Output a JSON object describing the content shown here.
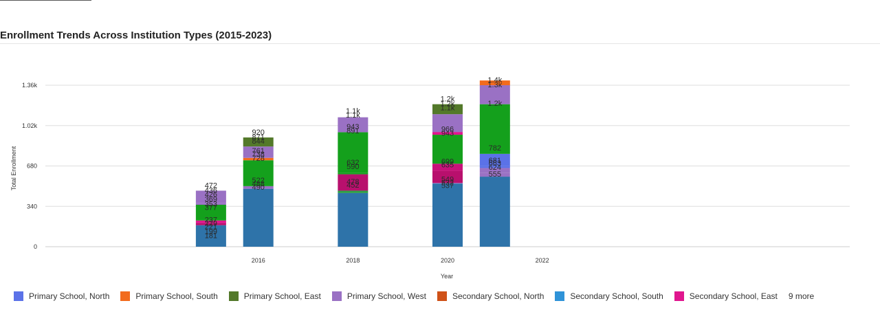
{
  "chart_data": {
    "type": "bar",
    "title": "Enrollment Trends Across Institution Types (2015-2023)",
    "xlabel": "Year",
    "ylabel": "Total Enrollment",
    "x_ticks": [
      "2016",
      "2018",
      "2020",
      "2022"
    ],
    "y_ticks": [
      "0",
      "340",
      "680",
      "1.02k",
      "1.36k"
    ],
    "ylim": [
      0,
      1360
    ],
    "xlim": [
      2011.5,
      2028.5
    ],
    "grid": true,
    "legend_position": "bottom",
    "legend_more_label": "9 more",
    "x": [
      2015,
      2016,
      2018,
      2020,
      2021
    ],
    "series": [
      {
        "name": "Primary School, North",
        "color": "#5b72e8",
        "values": [
          null,
          null,
          null,
          null,
          782
        ]
      },
      {
        "name": "Primary School, South",
        "color": "#f26b1d",
        "values": [
          null,
          null,
          null,
          null,
          null
        ]
      },
      {
        "name": "Primary School, East",
        "color": "#53792a",
        "values": [
          null,
          null,
          null,
          null,
          null
        ]
      },
      {
        "name": "Primary School, West",
        "color": "#9a71c4",
        "values": [
          null,
          null,
          null,
          null,
          null
        ]
      },
      {
        "name": "Secondary School, North",
        "color": "#cf5118",
        "values": [
          null,
          null,
          null,
          null,
          null
        ]
      },
      {
        "name": "Secondary School, South",
        "color": "#2f93d8",
        "values": [
          null,
          null,
          null,
          null,
          null
        ]
      },
      {
        "name": "Secondary School, East",
        "color": "#e0168e",
        "values": [
          null,
          null,
          null,
          null,
          null
        ]
      }
    ],
    "data_labels": [
      {
        "x": 2015,
        "dy": 0,
        "text": "472"
      },
      {
        "x": 2015,
        "dy": 7,
        "text": "436"
      },
      {
        "x": 2015,
        "dy": 13,
        "text": "426"
      },
      {
        "x": 2015,
        "dy": 20,
        "text": "369"
      },
      {
        "x": 2015,
        "dy": 27,
        "text": "353"
      },
      {
        "x": 2015,
        "dy": 32,
        "text": "377"
      },
      {
        "x": 2015,
        "dy": 50,
        "text": "237"
      },
      {
        "x": 2015,
        "dy": 55,
        "text": "229"
      },
      {
        "x": 2015,
        "dy": 60,
        "text": "221"
      },
      {
        "x": 2015,
        "dy": 67,
        "text": "199"
      },
      {
        "x": 2015,
        "dy": 73,
        "text": "181"
      },
      {
        "x": 2016,
        "dy": 0,
        "text": "920"
      },
      {
        "x": 2016,
        "dy": 7,
        "text": "871"
      },
      {
        "x": 2016,
        "dy": 13,
        "text": "844"
      },
      {
        "x": 2016,
        "dy": 27,
        "text": "761"
      },
      {
        "x": 2016,
        "dy": 32,
        "text": "738"
      },
      {
        "x": 2016,
        "dy": 38,
        "text": "728"
      },
      {
        "x": 2016,
        "dy": 70,
        "text": "522"
      },
      {
        "x": 2016,
        "dy": 75,
        "text": "488"
      },
      {
        "x": 2016,
        "dy": 80,
        "text": "490"
      },
      {
        "x": 2018,
        "dy": 0,
        "text": "1.1k"
      },
      {
        "x": 2018,
        "dy": 6,
        "text": "1.1k"
      },
      {
        "x": 2018,
        "dy": 23,
        "text": "943"
      },
      {
        "x": 2018,
        "dy": 29,
        "text": "891"
      },
      {
        "x": 2018,
        "dy": 75,
        "text": "632"
      },
      {
        "x": 2018,
        "dy": 81,
        "text": "590"
      },
      {
        "x": 2018,
        "dy": 103,
        "text": "478"
      },
      {
        "x": 2018,
        "dy": 108,
        "text": "452"
      },
      {
        "x": 2020,
        "dy": 0,
        "text": "1.2k"
      },
      {
        "x": 2020,
        "dy": 7,
        "text": "1.2k"
      },
      {
        "x": 2020,
        "dy": 13,
        "text": "1.1k"
      },
      {
        "x": 2020,
        "dy": 44,
        "text": "966"
      },
      {
        "x": 2020,
        "dy": 50,
        "text": "943"
      },
      {
        "x": 2020,
        "dy": 91,
        "text": "699"
      },
      {
        "x": 2020,
        "dy": 96,
        "text": "635"
      },
      {
        "x": 2020,
        "dy": 117,
        "text": "549"
      },
      {
        "x": 2020,
        "dy": 122,
        "text": "532"
      },
      {
        "x": 2020,
        "dy": 126,
        "text": "537"
      },
      {
        "x": 2021,
        "dy": 0,
        "text": "1.4k"
      },
      {
        "x": 2021,
        "dy": 7,
        "text": "1.3k"
      },
      {
        "x": 2021,
        "dy": 34,
        "text": "1.2k"
      },
      {
        "x": 2021,
        "dy": 99,
        "text": "782"
      },
      {
        "x": 2021,
        "dy": 117,
        "text": "681"
      },
      {
        "x": 2021,
        "dy": 121,
        "text": "663"
      },
      {
        "x": 2021,
        "dy": 127,
        "text": "624"
      },
      {
        "x": 2021,
        "dy": 137,
        "text": "555"
      }
    ],
    "bars": [
      {
        "x": 2015,
        "total": 472,
        "segments": [
          {
            "v": 181,
            "color": "#2e73a9"
          },
          {
            "v": 18,
            "color": "#b8106d"
          },
          {
            "v": 22,
            "color": "#e0168e"
          },
          {
            "v": 132,
            "color": "#14a01c"
          },
          {
            "v": 16,
            "color": "#9a71c4"
          },
          {
            "v": 103,
            "color": "#9a71c4"
          }
        ]
      },
      {
        "x": 2016,
        "total": 920,
        "segments": [
          {
            "v": 488,
            "color": "#2e73a9"
          },
          {
            "v": 22,
            "color": "#9a71c4"
          },
          {
            "v": 218,
            "color": "#14a01c"
          },
          {
            "v": 20,
            "color": "#f26b1d"
          },
          {
            "v": 10,
            "color": "#9a71c4"
          },
          {
            "v": 86,
            "color": "#9a71c4"
          },
          {
            "v": 76,
            "color": "#53792a"
          }
        ]
      },
      {
        "x": 2018,
        "total": 1100,
        "segments": [
          {
            "v": 452,
            "color": "#2e73a9"
          },
          {
            "v": 20,
            "color": "#2f9e46"
          },
          {
            "v": 138,
            "color": "#b8106d"
          },
          {
            "v": 14,
            "color": "#14a01c"
          },
          {
            "v": 340,
            "color": "#14a01c"
          },
          {
            "v": 126,
            "color": "#9a71c4"
          }
        ]
      },
      {
        "x": 2020,
        "total": 1200,
        "segments": [
          {
            "v": 532,
            "color": "#2e73a9"
          },
          {
            "v": 5,
            "color": "#9a71c4"
          },
          {
            "v": 103,
            "color": "#b8106d"
          },
          {
            "v": 59,
            "color": "#c8117a"
          },
          {
            "v": 244,
            "color": "#14a01c"
          },
          {
            "v": 23,
            "color": "#e0168e"
          },
          {
            "v": 150,
            "color": "#9a71c4"
          },
          {
            "v": 84,
            "color": "#53792a"
          }
        ]
      },
      {
        "x": 2021,
        "total": 1360,
        "segments": [
          {
            "v": 590,
            "color": "#2e73a9"
          },
          {
            "v": 34,
            "color": "#9a71c4"
          },
          {
            "v": 39,
            "color": "#9a71c4"
          },
          {
            "v": 18,
            "color": "#5b72e8"
          },
          {
            "v": 101,
            "color": "#5b72e8"
          },
          {
            "v": 418,
            "color": "#14a01c"
          },
          {
            "v": 160,
            "color": "#9a71c4"
          },
          {
            "v": 40,
            "color": "#f26b1d"
          }
        ]
      }
    ]
  }
}
